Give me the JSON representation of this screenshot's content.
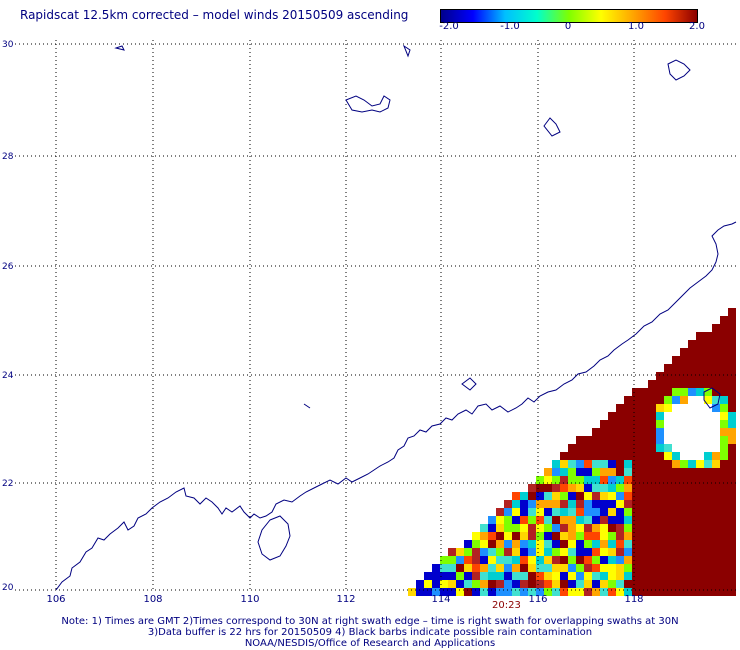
{
  "title": "Rapidscat 12.5km corrected – model winds 20150509 ascending",
  "colorbar": {
    "stops": [
      "#00008b",
      "#0000ff",
      "#00bfff",
      "#00ffcc",
      "#7fff00",
      "#ffff00",
      "#ffa500",
      "#ff4500",
      "#8b0000"
    ],
    "ticks": [
      "-2.0",
      "-1.0",
      "0",
      "1.0",
      "2.0"
    ]
  },
  "lat_labels": [
    "30",
    "28",
    "26",
    "24",
    "22",
    "20"
  ],
  "lon_labels": [
    "106",
    "108",
    "110",
    "112",
    "114",
    "116",
    "118"
  ],
  "time_label": "20:23",
  "notes": [
    "Note: 1) Times are GMT 2)Times correspond to 30N at right swath edge – time is right swath for overlapping swaths at 30N",
    "3)Data buffer is 22 hrs for 20150509 4) Black barbs indicate possible rain contamination",
    "NOAA/NESDIS/Office of Research and Applications"
  ],
  "colors": {
    "coast": "#000080",
    "grid": "#000000",
    "saturated": "#8b0000"
  }
}
